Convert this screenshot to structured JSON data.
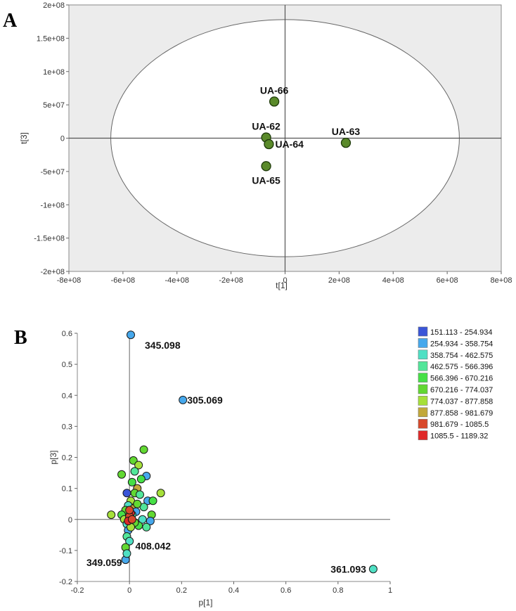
{
  "panels": {
    "a": "A",
    "b": "B"
  },
  "chart_data": [
    {
      "type": "scatter",
      "title": "",
      "xlabel": "t[1]",
      "ylabel": "t[3]",
      "xlim": [
        -800000000,
        800000000
      ],
      "ylim": [
        -200000000,
        200000000
      ],
      "xticks": [
        -800000000,
        -600000000,
        -400000000,
        -200000000,
        0,
        200000000,
        400000000,
        600000000,
        800000000
      ],
      "xticklabels": [
        "-8e+08",
        "-6e+08",
        "-4e+08",
        "-2e+08",
        "0",
        "2e+08",
        "4e+08",
        "6e+08",
        "8e+08"
      ],
      "yticks": [
        -200000000,
        -150000000,
        -100000000,
        -50000000,
        0,
        50000000,
        100000000,
        150000000,
        200000000
      ],
      "yticklabels": [
        "-2e+08",
        "-1.5e+08",
        "-1e+08",
        "-5e+07",
        "0",
        "5e+07",
        "1e+08",
        "1.5e+08",
        "2e+08"
      ],
      "ellipse": {
        "rx": 645000000,
        "ry": 178000000
      },
      "points": [
        {
          "label": "UA-66",
          "x": -40000000,
          "y": 55000000,
          "label_pos": "above"
        },
        {
          "label": "UA-62",
          "x": -70000000,
          "y": 1000000,
          "label_pos": "above"
        },
        {
          "label": "UA-64",
          "x": -60000000,
          "y": -9000000,
          "label_pos": "right"
        },
        {
          "label": "UA-65",
          "x": -70000000,
          "y": -42000000,
          "label_pos": "below"
        },
        {
          "label": "UA-63",
          "x": 225000000,
          "y": -7000000,
          "label_pos": "above"
        }
      ],
      "point_color": "#5a8a2a"
    },
    {
      "type": "scatter",
      "title": "",
      "xlabel": "p[1]",
      "ylabel": "p[3]",
      "xlim": [
        -0.2,
        1.0
      ],
      "ylim": [
        -0.2,
        0.6
      ],
      "xticks": [
        -0.2,
        0,
        0.2,
        0.4,
        0.6,
        0.8,
        1
      ],
      "xticklabels": [
        "-0.2",
        "0",
        "0.2",
        "0.4",
        "0.6",
        "0.8",
        "1"
      ],
      "yticks": [
        -0.2,
        -0.1,
        0,
        0.1,
        0.2,
        0.3,
        0.4,
        0.5,
        0.6
      ],
      "yticklabels": [
        "-0.2",
        "-0.1",
        "0",
        "0.1",
        "0.2",
        "0.3",
        "0.4",
        "0.5",
        "0.6"
      ],
      "legend": [
        {
          "range": "151.113 - 254.934",
          "color": "#3a55d8"
        },
        {
          "range": "254.934 - 358.754",
          "color": "#46a8ec"
        },
        {
          "range": "358.754 - 462.575",
          "color": "#4fe0c4"
        },
        {
          "range": "462.575 - 566.396",
          "color": "#52e69a"
        },
        {
          "range": "566.396 - 670.216",
          "color": "#46e046"
        },
        {
          "range": "670.216 - 774.037",
          "color": "#62d832"
        },
        {
          "range": "774.037 - 877.858",
          "color": "#a6e03a"
        },
        {
          "range": "877.858 - 981.679",
          "color": "#c2a83a"
        },
        {
          "range": "981.679 - 1085.5",
          "color": "#d8482a"
        },
        {
          "range": "1085.5 - 1189.32",
          "color": "#e02a2a"
        }
      ],
      "labeled_points": [
        {
          "label": "345.098",
          "x": 0.005,
          "y": 0.595,
          "bin": 1
        },
        {
          "label": "305.069",
          "x": 0.205,
          "y": 0.385,
          "bin": 1
        },
        {
          "label": "349.059",
          "x": -0.015,
          "y": -0.13,
          "bin": 1
        },
        {
          "label": "408.042",
          "x": -0.01,
          "y": -0.11,
          "bin": 2
        },
        {
          "label": "361.093",
          "x": 0.935,
          "y": -0.16,
          "bin": 2
        }
      ],
      "cluster_points": [
        {
          "x": -0.07,
          "y": 0.015,
          "bin": 6
        },
        {
          "x": -0.03,
          "y": 0.145,
          "bin": 5
        },
        {
          "x": 0.015,
          "y": 0.19,
          "bin": 5
        },
        {
          "x": 0.055,
          "y": 0.225,
          "bin": 5
        },
        {
          "x": 0.035,
          "y": 0.175,
          "bin": 6
        },
        {
          "x": 0.065,
          "y": 0.14,
          "bin": 1
        },
        {
          "x": 0.045,
          "y": 0.13,
          "bin": 4
        },
        {
          "x": 0.02,
          "y": 0.155,
          "bin": 3
        },
        {
          "x": 0.01,
          "y": 0.12,
          "bin": 4
        },
        {
          "x": -0.01,
          "y": 0.085,
          "bin": 0
        },
        {
          "x": 0.03,
          "y": 0.1,
          "bin": 7
        },
        {
          "x": 0.02,
          "y": 0.085,
          "bin": 5
        },
        {
          "x": 0.04,
          "y": 0.08,
          "bin": 3
        },
        {
          "x": 0.07,
          "y": 0.06,
          "bin": 1
        },
        {
          "x": 0.09,
          "y": 0.06,
          "bin": 4
        },
        {
          "x": 0.12,
          "y": 0.085,
          "bin": 6
        },
        {
          "x": 0.055,
          "y": 0.04,
          "bin": 3
        },
        {
          "x": 0.085,
          "y": 0.015,
          "bin": 5
        },
        {
          "x": 0.05,
          "y": 0.0,
          "bin": 2
        },
        {
          "x": 0.08,
          "y": -0.005,
          "bin": 1
        },
        {
          "x": 0.065,
          "y": -0.025,
          "bin": 3
        },
        {
          "x": 0.035,
          "y": -0.02,
          "bin": 4
        },
        {
          "x": 0.005,
          "y": 0.06,
          "bin": 6
        },
        {
          "x": -0.005,
          "y": 0.045,
          "bin": 2
        },
        {
          "x": 0.015,
          "y": 0.035,
          "bin": 7
        },
        {
          "x": -0.015,
          "y": 0.03,
          "bin": 5
        },
        {
          "x": 0.025,
          "y": 0.025,
          "bin": 1
        },
        {
          "x": -0.03,
          "y": 0.015,
          "bin": 4
        },
        {
          "x": -0.02,
          "y": 0.0,
          "bin": 6
        },
        {
          "x": 0.0,
          "y": 0.005,
          "bin": 7
        },
        {
          "x": 0.01,
          "y": 0.015,
          "bin": 3
        },
        {
          "x": 0.02,
          "y": -0.01,
          "bin": 5
        },
        {
          "x": -0.01,
          "y": -0.015,
          "bin": 2
        },
        {
          "x": -0.005,
          "y": -0.035,
          "bin": 1
        },
        {
          "x": -0.01,
          "y": -0.055,
          "bin": 3
        },
        {
          "x": 0.0,
          "y": -0.07,
          "bin": 2
        },
        {
          "x": -0.015,
          "y": -0.09,
          "bin": 5
        },
        {
          "x": 0.005,
          "y": -0.025,
          "bin": 6
        },
        {
          "x": 0.03,
          "y": 0.05,
          "bin": 5
        },
        {
          "x": 0.005,
          "y": 0.02,
          "bin": 9
        },
        {
          "x": 0.0,
          "y": 0.01,
          "bin": 8
        },
        {
          "x": -0.005,
          "y": -0.005,
          "bin": 9
        },
        {
          "x": 0.01,
          "y": 0.0,
          "bin": 8
        },
        {
          "x": 0.0,
          "y": 0.03,
          "bin": 8
        }
      ]
    }
  ]
}
